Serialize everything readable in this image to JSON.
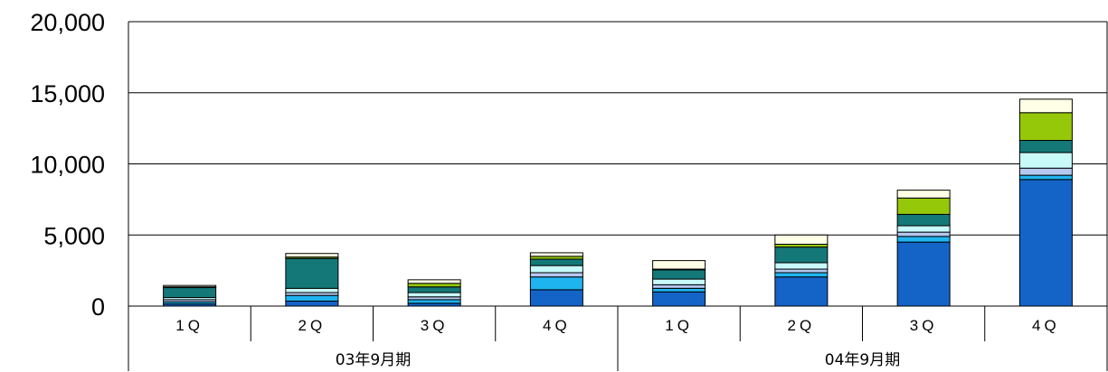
{
  "chart_data": {
    "type": "bar",
    "stacked": true,
    "title": "",
    "xlabel": "",
    "ylabel": "",
    "ylim": [
      0,
      20000
    ],
    "yticks": [
      "0",
      "5,000",
      "10,000",
      "15,000",
      "20,000"
    ],
    "ytick_values": [
      0,
      5000,
      10000,
      15000,
      20000
    ],
    "grid": true,
    "legend": "none",
    "periods": [
      {
        "label": "03年9月期",
        "quarters": [
          "1Q",
          "2Q",
          "3Q",
          "4Q"
        ]
      },
      {
        "label": "04年9月期",
        "quarters": [
          "1Q",
          "2Q",
          "3Q",
          "4Q"
        ]
      }
    ],
    "categories": [
      "1Q",
      "2Q",
      "3Q",
      "4Q",
      "1Q",
      "2Q",
      "3Q",
      "4Q"
    ],
    "series": [
      {
        "color": "#1464C8",
        "values": [
          150,
          350,
          200,
          1150,
          1000,
          2050,
          4500,
          8900
        ]
      },
      {
        "color": "#1EB4F0",
        "values": [
          150,
          400,
          250,
          900,
          250,
          300,
          400,
          300
        ]
      },
      {
        "color": "#B4C8F0",
        "values": [
          150,
          200,
          200,
          300,
          250,
          250,
          300,
          500
        ]
      },
      {
        "color": "#C8FAFA",
        "values": [
          150,
          300,
          300,
          500,
          400,
          450,
          450,
          1100
        ]
      },
      {
        "color": "#147878",
        "values": [
          700,
          2100,
          400,
          450,
          650,
          1100,
          800,
          850
        ]
      },
      {
        "color": "#96C80A",
        "values": [
          50,
          100,
          250,
          200,
          50,
          200,
          1150,
          1950
        ]
      },
      {
        "color": "#FFFFE6",
        "values": [
          100,
          250,
          250,
          250,
          600,
          650,
          550,
          950
        ]
      }
    ]
  }
}
